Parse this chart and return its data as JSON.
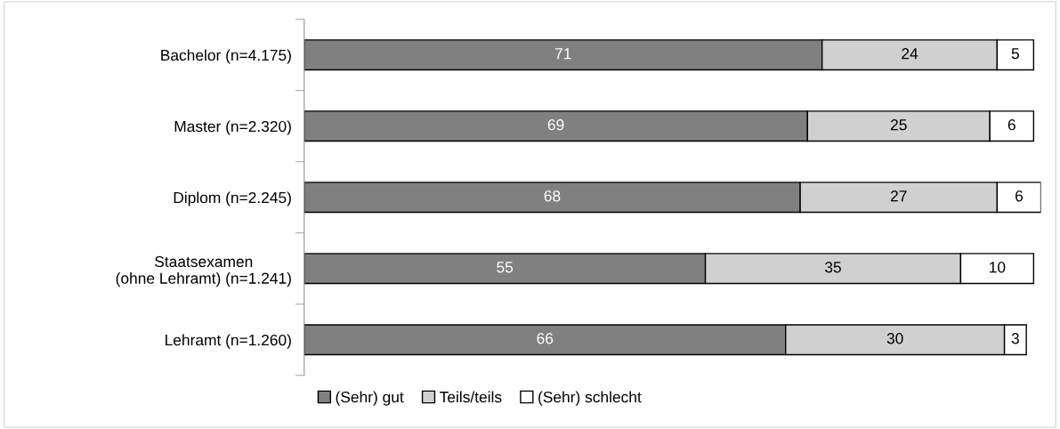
{
  "chart_data": {
    "type": "bar",
    "orientation": "horizontal",
    "stacked": true,
    "categories": [
      "Bachelor (n=4.175)",
      "Master (n=2.320)",
      "Diplom (n=2.245)",
      "Staatsexamen\n(ohne Lehramt) (n=1.241)",
      "Lehramt (n=1.260)"
    ],
    "series": [
      {
        "name": "(Sehr) gut",
        "color": "#808080",
        "values": [
          71,
          69,
          68,
          55,
          66
        ]
      },
      {
        "name": "Teils/teils",
        "color": "#d0d0d0",
        "values": [
          24,
          25,
          27,
          35,
          30
        ]
      },
      {
        "name": "(Sehr) schlecht",
        "color": "#ffffff",
        "values": [
          5,
          6,
          6,
          10,
          3
        ]
      }
    ],
    "data_labels": true,
    "legend": "bottom",
    "grid": false
  }
}
